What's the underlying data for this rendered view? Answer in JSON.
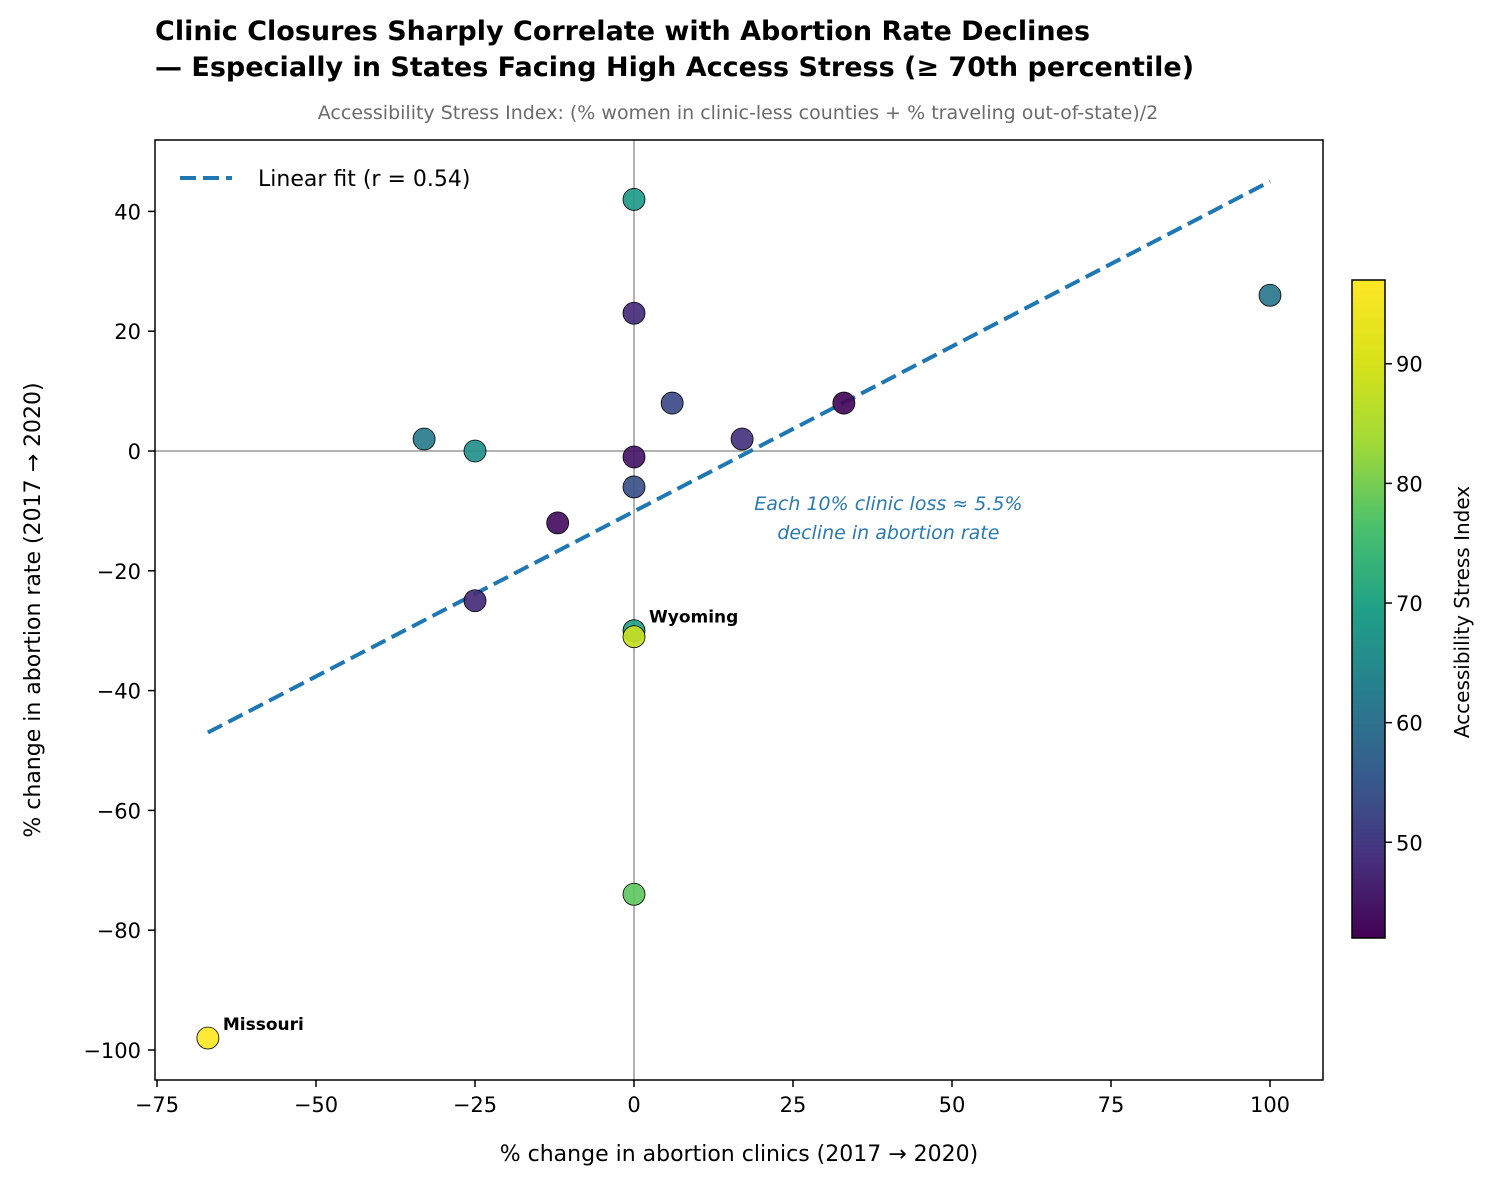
{
  "chart_data": {
    "type": "scatter",
    "title_line1": "Clinic Closures Sharply Correlate with Abortion Rate Declines",
    "title_line2": "— Especially in States Facing High Access Stress (≥ 70th percentile)",
    "subtitle": "Accessibility Stress Index: (% women in clinic-less counties + % traveling out-of-state)/2",
    "xlabel": "% change in abortion clinics (2017 → 2020)",
    "ylabel": "% change in abortion rate (2017 → 2020)",
    "xlim": [
      -75.5,
      108
    ],
    "ylim": [
      -105,
      52
    ],
    "xticks": [
      -75,
      -50,
      -25,
      0,
      25,
      50,
      75,
      100
    ],
    "yticks": [
      40,
      20,
      0,
      -20,
      -40,
      -60,
      -80,
      -100
    ],
    "xtick_labels": [
      "−75",
      "−50",
      "−25",
      "0",
      "25",
      "50",
      "75",
      "100"
    ],
    "ytick_labels": [
      "40",
      "20",
      "0",
      "−20",
      "−40",
      "−60",
      "−80",
      "−100"
    ],
    "points": [
      {
        "x": 0,
        "y": 42,
        "stress": 68
      },
      {
        "x": 100,
        "y": 26,
        "stress": 61
      },
      {
        "x": 0,
        "y": 23,
        "stress": 48
      },
      {
        "x": 6,
        "y": 8,
        "stress": 53
      },
      {
        "x": 33,
        "y": 8,
        "stress": 43
      },
      {
        "x": -33,
        "y": 2,
        "stress": 62
      },
      {
        "x": 17,
        "y": 2,
        "stress": 49
      },
      {
        "x": -25,
        "y": 0,
        "stress": 66
      },
      {
        "x": 0,
        "y": -1,
        "stress": 45
      },
      {
        "x": 0,
        "y": -6,
        "stress": 54
      },
      {
        "x": -12,
        "y": -12,
        "stress": 44
      },
      {
        "x": -25,
        "y": -25,
        "stress": 48
      },
      {
        "x": 0,
        "y": -30,
        "stress": 70
      },
      {
        "x": 0,
        "y": -31,
        "stress": 88
      },
      {
        "x": 0,
        "y": -74,
        "stress": 78
      },
      {
        "x": -67,
        "y": -98,
        "stress": 97
      }
    ],
    "point_labels": [
      {
        "text": "Wyoming",
        "x": 0,
        "y": -30
      },
      {
        "text": "Missouri",
        "x": -67,
        "y": -98
      }
    ],
    "fit_line": {
      "x": [
        -67,
        100
      ],
      "y": [
        -47,
        45
      ],
      "color": "#1f77b4"
    },
    "legend": {
      "label": "Linear fit (r = 0.54)",
      "placement": "top-left"
    },
    "annotation": {
      "line1": "Each 10% clinic loss ≈ 5.5%",
      "line2": "decline in abortion rate",
      "x": 40,
      "y": -10
    },
    "reference_lines": {
      "x": 0,
      "y": 0
    },
    "colorbar": {
      "label": "Accessibility Stress Index",
      "range": [
        42,
        97
      ],
      "ticks": [
        50,
        60,
        70,
        80,
        90
      ],
      "tick_labels": [
        "50",
        "60",
        "70",
        "80",
        "90"
      ],
      "colormap": "viridis"
    }
  }
}
